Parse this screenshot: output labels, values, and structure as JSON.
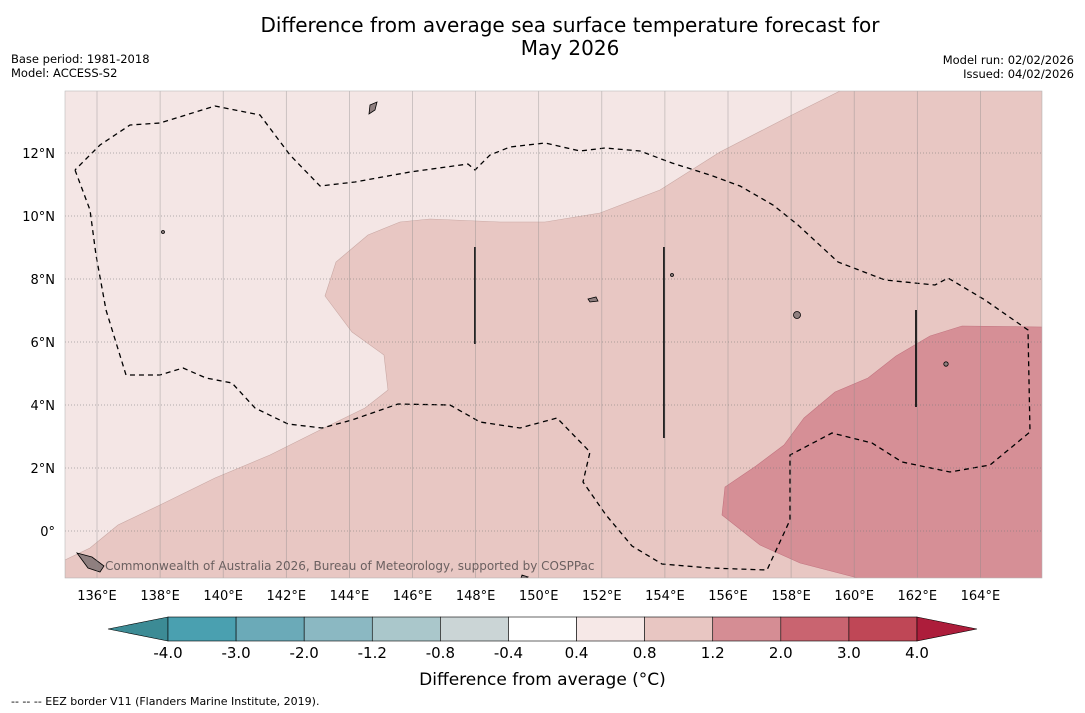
{
  "header": {
    "title_line1": "Difference from average sea surface temperature forecast for",
    "title_line2": "May 2026",
    "base_period": "Base period: 1981-2018",
    "model": "Model: ACCESS-S2",
    "model_run": "Model run: 02/02/2026",
    "issued": "Issued: 04/02/2026"
  },
  "map": {
    "credit": "Commonwealth of Australia 2026, Bureau of Meteorology, supported by COSPPac",
    "lon_labels": [
      "136°E",
      "138°E",
      "140°E",
      "142°E",
      "144°E",
      "146°E",
      "148°E",
      "150°E",
      "152°E",
      "154°E",
      "156°E",
      "158°E",
      "160°E",
      "162°E",
      "164°E"
    ],
    "lat_labels": [
      "12°N",
      "10°N",
      "8°N",
      "6°N",
      "4°N",
      "2°N",
      "0°"
    ],
    "colors": {
      "band_0_4_0_8": "#f4e6e5",
      "band_0_8_1_2": "#e8c7c3",
      "band_1_2_2_0": "#d68f96",
      "land": "#8f7f7f"
    }
  },
  "colorbar": {
    "ticks": [
      "-4.0",
      "-3.0",
      "-2.0",
      "-1.2",
      "-0.8",
      "-0.4",
      "0.4",
      "0.8",
      "1.2",
      "2.0",
      "3.0",
      "4.0"
    ],
    "colors": [
      "#3c8b95",
      "#4aa0b0",
      "#6baab8",
      "#8bb8c2",
      "#aac7cb",
      "#cbd5d6",
      "#ffffff",
      "#f6e8e7",
      "#e8c6c2",
      "#d58d94",
      "#c96470",
      "#bf4756",
      "#ad1d3b"
    ],
    "title": "Difference from average (°C)"
  },
  "footnote": "--  --  -- EEZ border V11 (Flanders Marine Institute, 2019)."
}
